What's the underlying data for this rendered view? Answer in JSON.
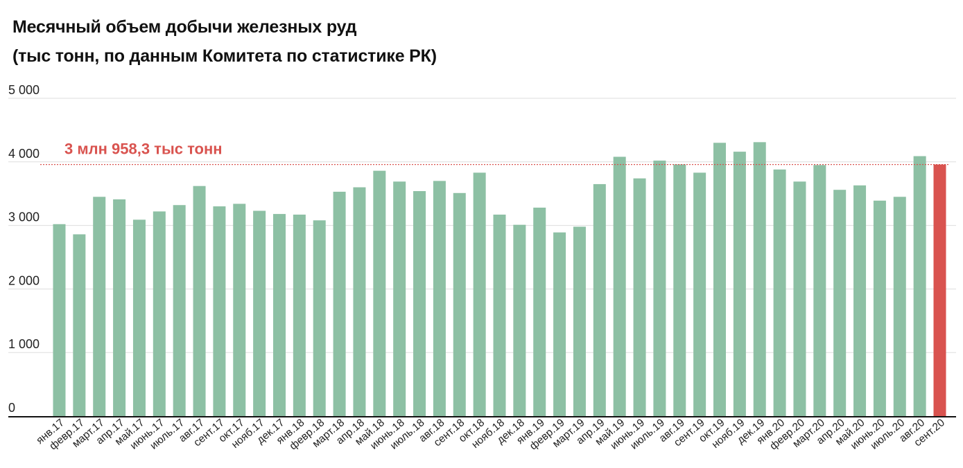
{
  "chart_data": {
    "type": "bar",
    "title": "Месячный объем добычи железных руд",
    "subtitle": "(тыс тонн, по данным Комитета по статистике РК)",
    "xlabel": "",
    "ylabel": "",
    "ylim": [
      0,
      5000
    ],
    "yticks": [
      {
        "value": 0,
        "label": "0"
      },
      {
        "value": 1000,
        "label": "1 000"
      },
      {
        "value": 2000,
        "label": "2 000"
      },
      {
        "value": 3000,
        "label": "3 000"
      },
      {
        "value": 4000,
        "label": "4 000"
      },
      {
        "value": 5000,
        "label": "5 000"
      }
    ],
    "grid": true,
    "categories": [
      "янв.17",
      "февр.17",
      "март.17",
      "апр.17",
      "май.17",
      "июнь.17",
      "июль.17",
      "авг.17",
      "сент.17",
      "окт.17",
      "нояб.17",
      "дек.17",
      "янв.18",
      "февр.18",
      "март.18",
      "апр.18",
      "май.18",
      "июнь.18",
      "июль.18",
      "авг.18",
      "сент.18",
      "окт.18",
      "нояб.18",
      "дек.18",
      "янв.19",
      "февр.19",
      "март.19",
      "апр.19",
      "май.19",
      "июнь.19",
      "июль.19",
      "авг.19",
      "сент.19",
      "окт.19",
      "нояб.19",
      "дек.19",
      "янв.20",
      "февр.20",
      "март.20",
      "апр.20",
      "май.20",
      "июнь.20",
      "июль.20",
      "авг.20",
      "сент.20"
    ],
    "values": [
      3020,
      2860,
      3450,
      3410,
      3090,
      3220,
      3320,
      3620,
      3300,
      3340,
      3230,
      3180,
      3170,
      3080,
      3530,
      3600,
      3860,
      3690,
      3540,
      3700,
      3510,
      3830,
      3170,
      3010,
      3280,
      2890,
      2980,
      3650,
      4080,
      3740,
      4020,
      3960,
      3830,
      4300,
      4160,
      4310,
      3880,
      3690,
      3950,
      3560,
      3630,
      3390,
      3450,
      4090,
      3958.3
    ],
    "highlight_index": 44,
    "reference_line": {
      "value": 3958.3,
      "label": "3 млн 958,3 тыс тонн"
    },
    "colors": {
      "bar": "#8dc0a4",
      "highlight": "#d9534f",
      "reference": "#d9534f",
      "grid": "#dddddd",
      "axis": "#111111"
    }
  }
}
